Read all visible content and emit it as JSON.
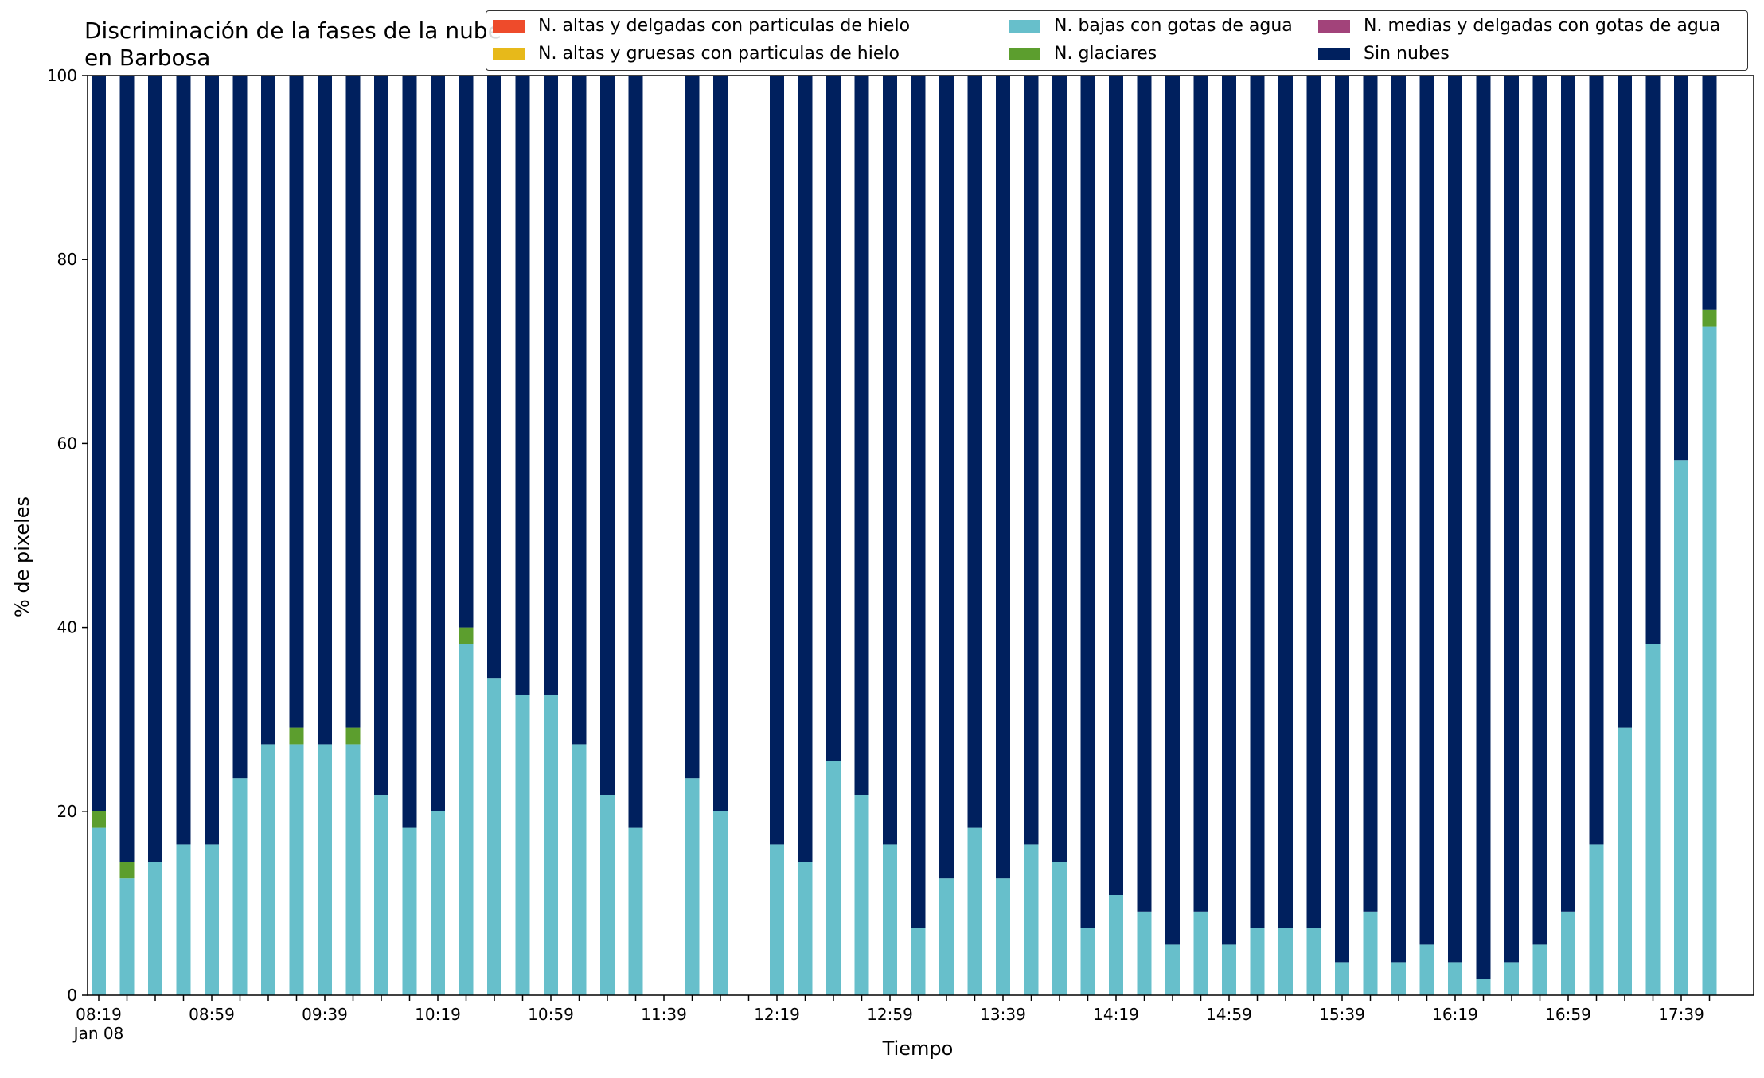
{
  "title": "Discriminación de la fases de la nube en Barbosa",
  "chart_data": {
    "type": "bar",
    "stacked": true,
    "title": "Discriminación de la fases de la nube en Barbosa",
    "xlabel": "Tiempo",
    "ylabel": "% de pixeles",
    "ylim": [
      0,
      100
    ],
    "yticks": [
      0,
      20,
      40,
      60,
      80,
      100
    ],
    "xticks": [
      "08:19\nJan 08",
      "08:59",
      "09:39",
      "10:19",
      "10:59",
      "11:39",
      "12:19",
      "12:59",
      "13:39",
      "14:19",
      "14:59",
      "15:39",
      "16:19",
      "16:59",
      "17:39"
    ],
    "legend_position": "top-right",
    "legend_columns": 3,
    "categories": [
      "08:19",
      "08:29",
      "08:39",
      "08:49",
      "08:59",
      "09:09",
      "09:19",
      "09:29",
      "09:39",
      "09:49",
      "09:59",
      "10:09",
      "10:19",
      "10:29",
      "10:39",
      "10:49",
      "10:59",
      "11:09",
      "11:19",
      "11:29",
      "11:39",
      "11:49",
      "11:59",
      "12:09",
      "12:19",
      "12:29",
      "12:39",
      "12:49",
      "12:59",
      "13:09",
      "13:19",
      "13:29",
      "13:39",
      "13:49",
      "13:59",
      "14:09",
      "14:19",
      "14:29",
      "14:39",
      "14:49",
      "14:59",
      "15:09",
      "15:19",
      "15:29",
      "15:39",
      "15:49",
      "15:59",
      "16:09",
      "16:19",
      "16:29",
      "16:39",
      "16:49",
      "16:59",
      "17:09",
      "17:19",
      "17:29",
      "17:39",
      "17:49"
    ],
    "series": [
      {
        "name": "N. altas y delgadas con particulas de hielo",
        "color": "#ee4b2b",
        "values": [
          0,
          0,
          0,
          0,
          0,
          0,
          0,
          0,
          0,
          0,
          0,
          0,
          0,
          0,
          0,
          0,
          0,
          0,
          0,
          0,
          0,
          0,
          0,
          0,
          0,
          0,
          0,
          0,
          0,
          0,
          0,
          0,
          0,
          0,
          0,
          0,
          0,
          0,
          0,
          0,
          0,
          0,
          0,
          0,
          0,
          0,
          0,
          0,
          0,
          0,
          0,
          0,
          0,
          0,
          0,
          0,
          0,
          0
        ]
      },
      {
        "name": "N. altas y gruesas con particulas de hielo",
        "color": "#e7b91a",
        "values": [
          0,
          0,
          0,
          0,
          0,
          0,
          0,
          0,
          0,
          0,
          0,
          0,
          0,
          0,
          0,
          0,
          0,
          0,
          0,
          0,
          0,
          0,
          0,
          0,
          0,
          0,
          0,
          0,
          0,
          0,
          0,
          0,
          0,
          0,
          0,
          0,
          0,
          0,
          0,
          0,
          0,
          0,
          0,
          0,
          0,
          0,
          0,
          0,
          0,
          0,
          0,
          0,
          0,
          0,
          0,
          0,
          0,
          0
        ]
      },
      {
        "name": "N. bajas con gotas de agua",
        "color": "#67bfcb",
        "values": [
          18.2,
          12.7,
          14.5,
          16.4,
          16.4,
          23.6,
          27.3,
          27.3,
          27.3,
          27.3,
          21.8,
          18.2,
          20,
          38.2,
          34.5,
          32.7,
          32.7,
          27.3,
          21.8,
          18.2,
          null,
          23.6,
          20,
          null,
          16.4,
          14.5,
          25.5,
          21.8,
          16.4,
          7.3,
          12.7,
          18.2,
          12.7,
          16.4,
          14.5,
          7.3,
          10.9,
          9.1,
          5.5,
          9.1,
          5.5,
          7.3,
          7.3,
          7.3,
          3.6,
          9.1,
          3.6,
          5.5,
          3.6,
          1.8,
          3.6,
          5.5,
          9.1,
          16.4,
          29.1,
          38.2,
          58.2,
          72.7
        ]
      },
      {
        "name": "N. glaciares",
        "color": "#5c9e2e",
        "values": [
          1.8,
          1.8,
          0,
          0,
          0,
          0,
          0,
          1.8,
          0,
          1.8,
          0,
          0,
          0,
          1.8,
          0,
          0,
          0,
          0,
          0,
          0,
          null,
          0,
          0,
          null,
          0,
          0,
          0,
          0,
          0,
          0,
          0,
          0,
          0,
          0,
          0,
          0,
          0,
          0,
          0,
          0,
          0,
          0,
          0,
          0,
          0,
          0,
          0,
          0,
          0,
          0,
          0,
          0,
          0,
          0,
          0,
          0,
          0,
          1.8
        ]
      },
      {
        "name": "N. medias y delgadas con gotas de agua",
        "color": "#a2437a",
        "values": [
          0,
          0,
          0,
          0,
          0,
          0,
          0,
          0,
          0,
          0,
          0,
          0,
          0,
          0,
          0,
          0,
          0,
          0,
          0,
          0,
          0,
          0,
          0,
          0,
          0,
          0,
          0,
          0,
          0,
          0,
          0,
          0,
          0,
          0,
          0,
          0,
          0,
          0,
          0,
          0,
          0,
          0,
          0,
          0,
          0,
          0,
          0,
          0,
          0,
          0,
          0,
          0,
          0,
          0,
          0,
          0,
          0,
          0
        ]
      },
      {
        "name": "Sin nubes",
        "color": "#00205e",
        "values": [
          80,
          85.5,
          85.5,
          83.6,
          83.6,
          76.4,
          72.7,
          70.9,
          72.7,
          70.9,
          78.2,
          81.8,
          80,
          60,
          65.5,
          67.3,
          67.3,
          72.7,
          78.2,
          81.8,
          null,
          76.4,
          80,
          null,
          83.6,
          85.5,
          74.5,
          78.2,
          83.6,
          92.7,
          87.3,
          81.8,
          87.3,
          83.6,
          85.5,
          92.7,
          89.1,
          90.9,
          94.5,
          90.9,
          94.5,
          92.7,
          92.7,
          92.7,
          96.4,
          90.9,
          96.4,
          94.5,
          96.4,
          98.2,
          96.4,
          94.5,
          90.9,
          83.6,
          70.9,
          61.8,
          41.8,
          25.5
        ]
      }
    ]
  }
}
